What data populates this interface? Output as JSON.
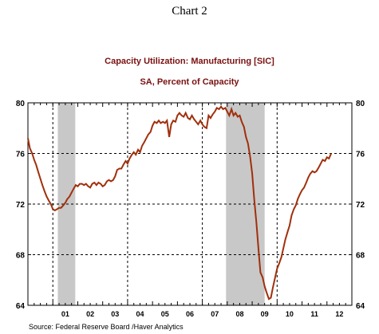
{
  "heading": "Chart 2",
  "source": "Source:  Federal Reserve Board /Haver Analytics",
  "colors": {
    "line": "#a0300c",
    "recession": "#c8c8c8",
    "title": "#7a1010",
    "grid": "#000000"
  },
  "chart_data": {
    "type": "line",
    "title": "Capacity Utilization: Manufacturing [SIC]",
    "subtitle": "SA, Percent of Capacity",
    "x_range": [
      2000.0,
      2013.0
    ],
    "ylim": [
      64,
      80
    ],
    "yticks": [
      64,
      68,
      72,
      76,
      80
    ],
    "y_axis_labels_both_sides": true,
    "grid": "dashed horizontal at y ticks; dashed vertical at year boundaries 2001, 2004, 2007, 2010",
    "recession_shading": [
      [
        2001.2,
        2001.9
      ],
      [
        2007.95,
        2009.5
      ]
    ],
    "xtick_labels": [
      {
        "label": "01",
        "year": 2001
      },
      {
        "label": "02",
        "year": 2002
      },
      {
        "label": "03",
        "year": 2003
      },
      {
        "label": "04",
        "year": 2004
      },
      {
        "label": "05",
        "year": 2005
      },
      {
        "label": "06",
        "year": 2006
      },
      {
        "label": "07",
        "year": 2007
      },
      {
        "label": "08",
        "year": 2008
      },
      {
        "label": "09",
        "year": 2009
      },
      {
        "label": "10",
        "year": 2010
      },
      {
        "label": "11",
        "year": 2011
      },
      {
        "label": "12",
        "year": 2012
      }
    ],
    "series": [
      {
        "x": [
          2000.0,
          2000.08,
          2000.17,
          2000.25,
          2000.33,
          2000.42,
          2000.5,
          2000.58,
          2000.67,
          2000.75,
          2000.83,
          2000.92,
          2001.0,
          2001.08,
          2001.17,
          2001.25,
          2001.33,
          2001.42,
          2001.5,
          2001.58,
          2001.67,
          2001.75,
          2001.83,
          2001.92,
          2002.0,
          2002.08,
          2002.17,
          2002.25,
          2002.33,
          2002.42,
          2002.5,
          2002.58,
          2002.67,
          2002.75,
          2002.83,
          2002.92,
          2003.0,
          2003.08,
          2003.17,
          2003.25,
          2003.33,
          2003.42,
          2003.5,
          2003.58,
          2003.67,
          2003.75,
          2003.83,
          2003.92,
          2004.0,
          2004.08,
          2004.17,
          2004.25,
          2004.33,
          2004.42,
          2004.5,
          2004.58,
          2004.67,
          2004.75,
          2004.83,
          2004.92,
          2005.0,
          2005.08,
          2005.17,
          2005.25,
          2005.33,
          2005.42,
          2005.5,
          2005.58,
          2005.67,
          2005.75,
          2005.83,
          2005.92,
          2006.0,
          2006.08,
          2006.17,
          2006.25,
          2006.33,
          2006.42,
          2006.5,
          2006.58,
          2006.67,
          2006.75,
          2006.83,
          2006.92,
          2007.0,
          2007.08,
          2007.17,
          2007.25,
          2007.33,
          2007.42,
          2007.5,
          2007.58,
          2007.67,
          2007.75,
          2007.83,
          2007.92,
          2008.0,
          2008.08,
          2008.17,
          2008.25,
          2008.33,
          2008.42,
          2008.5,
          2008.58,
          2008.67,
          2008.75,
          2008.83,
          2008.92,
          2009.0,
          2009.08,
          2009.17,
          2009.25,
          2009.33,
          2009.42,
          2009.5,
          2009.58,
          2009.67,
          2009.75,
          2009.83,
          2009.92,
          2010.0,
          2010.08,
          2010.17,
          2010.25,
          2010.33,
          2010.42,
          2010.5,
          2010.58,
          2010.67,
          2010.75,
          2010.83,
          2010.92,
          2011.0,
          2011.08,
          2011.17,
          2011.25,
          2011.33,
          2011.42,
          2011.5,
          2011.58,
          2011.67,
          2011.75,
          2011.83,
          2011.92,
          2012.0,
          2012.08,
          2012.17
        ],
        "y": [
          77.2,
          76.4,
          76.0,
          75.5,
          75.1,
          74.5,
          74.0,
          73.5,
          73.0,
          72.6,
          72.3,
          72.0,
          71.6,
          71.5,
          71.6,
          71.7,
          71.7,
          71.9,
          72.1,
          72.4,
          72.6,
          72.9,
          73.2,
          73.5,
          73.4,
          73.6,
          73.6,
          73.5,
          73.6,
          73.4,
          73.3,
          73.6,
          73.7,
          73.5,
          73.7,
          73.6,
          73.4,
          73.5,
          73.8,
          73.9,
          73.8,
          73.9,
          74.2,
          74.7,
          74.8,
          74.8,
          75.1,
          75.4,
          75.2,
          75.6,
          75.9,
          76.1,
          75.9,
          76.3,
          76.1,
          76.6,
          76.9,
          77.2,
          77.5,
          77.7,
          78.2,
          78.5,
          78.4,
          78.6,
          78.4,
          78.5,
          78.4,
          78.6,
          77.3,
          78.3,
          78.6,
          78.5,
          79.0,
          79.2,
          79.0,
          78.9,
          79.2,
          78.8,
          78.7,
          79.0,
          78.7,
          78.5,
          78.3,
          78.6,
          78.3,
          78.1,
          78.0,
          79.0,
          78.8,
          79.1,
          79.3,
          79.6,
          79.5,
          79.7,
          79.5,
          79.6,
          79.3,
          79.0,
          79.5,
          79.0,
          79.2,
          78.9,
          79.0,
          78.5,
          78.1,
          77.3,
          76.8,
          75.7,
          74.4,
          72.4,
          70.5,
          68.5,
          66.6,
          66.2,
          65.5,
          65.0,
          64.5,
          64.6,
          65.4,
          66.2,
          66.9,
          67.3,
          67.8,
          68.5,
          69.2,
          69.8,
          70.3,
          71.1,
          71.6,
          71.9,
          72.4,
          72.8,
          73.1,
          73.3,
          73.7,
          74.1,
          74.4,
          74.6,
          74.5,
          74.6,
          74.9,
          75.2,
          75.5,
          75.4,
          75.7,
          75.6,
          76.0
        ]
      }
    ]
  }
}
